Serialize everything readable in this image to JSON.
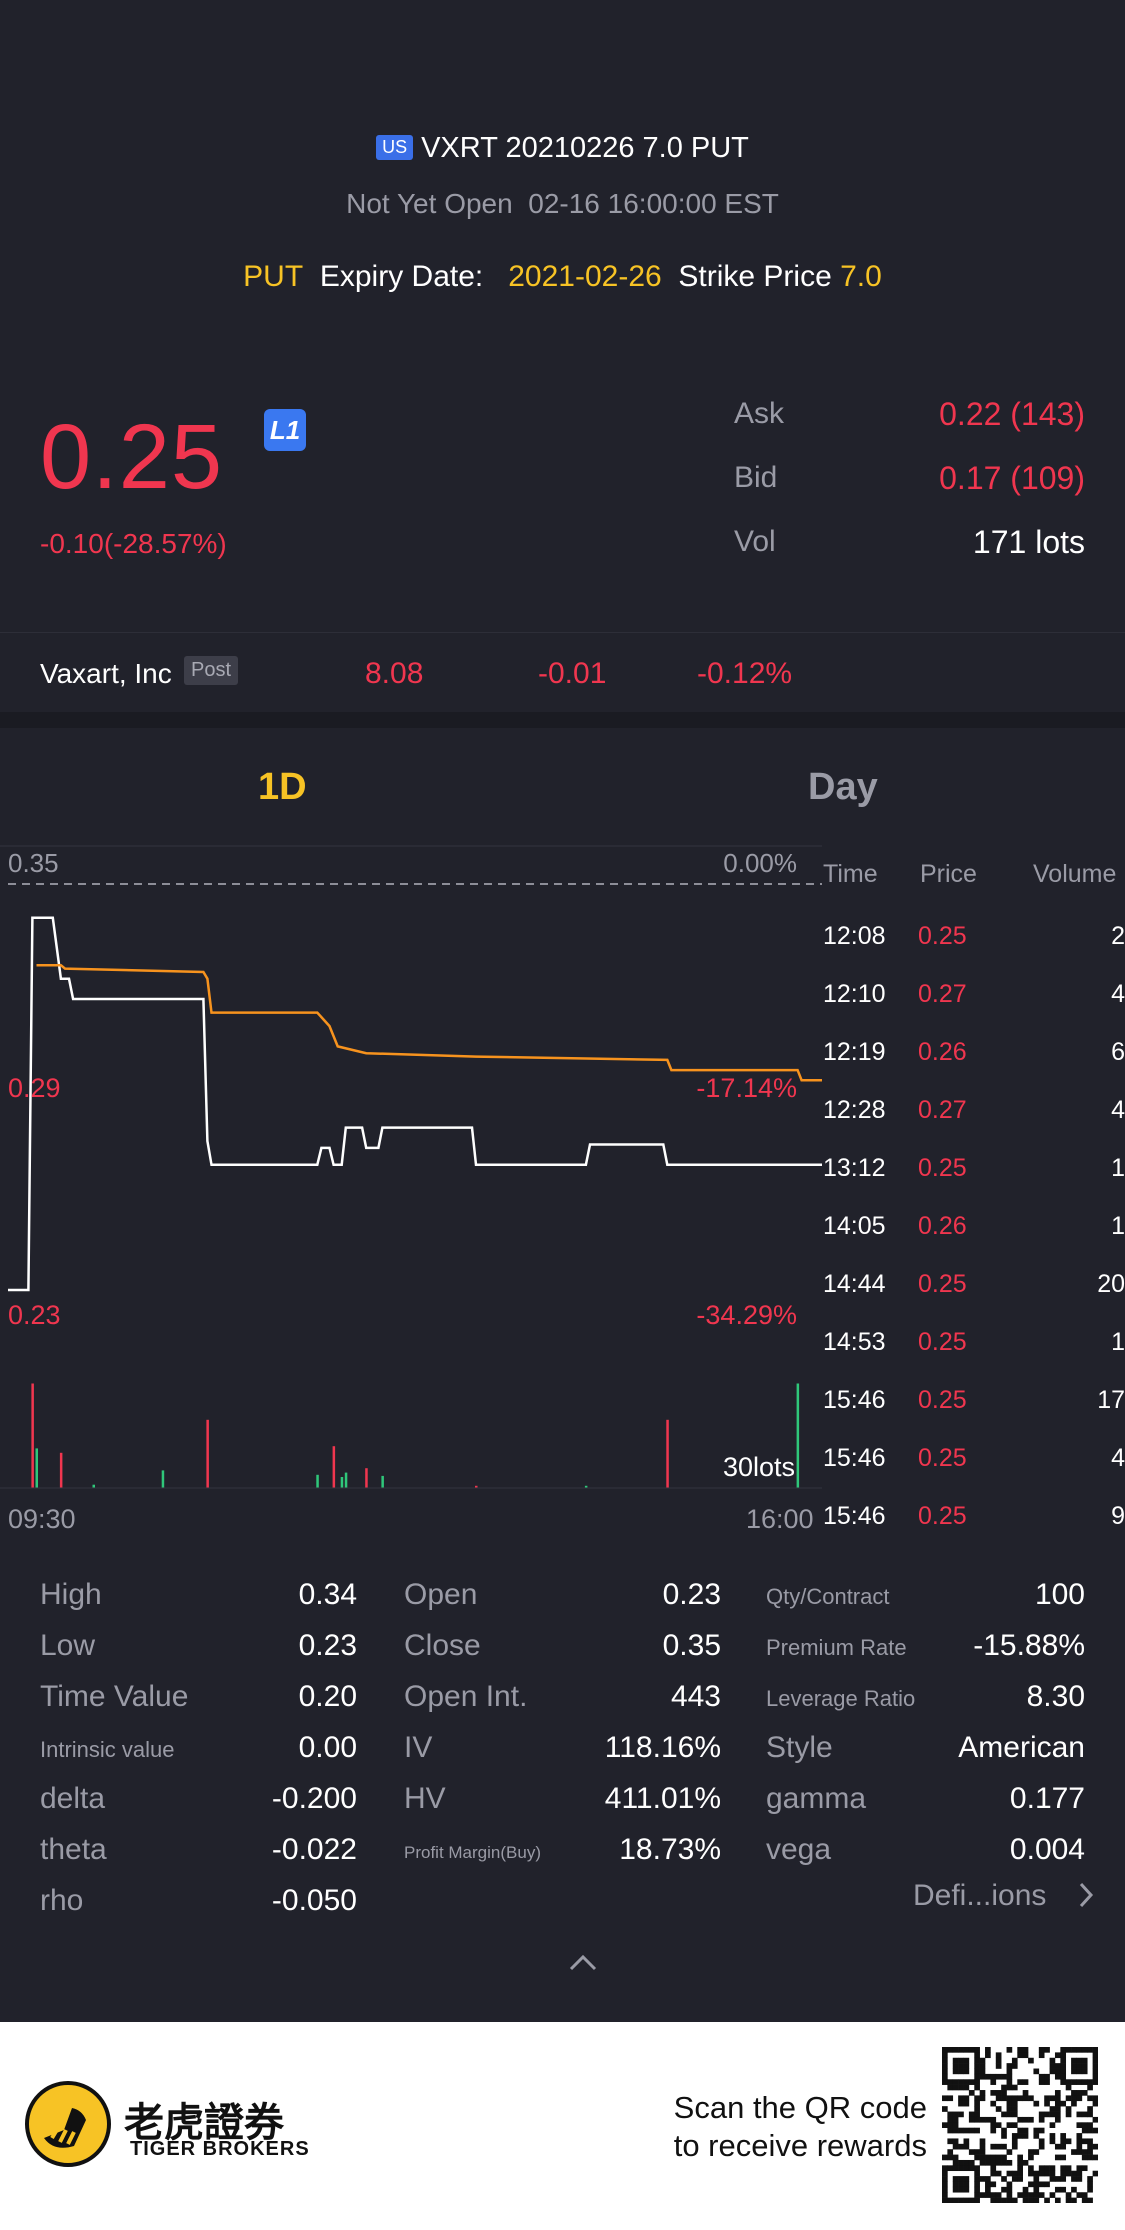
{
  "header": {
    "market_badge": "US",
    "title": "VXRT 20210226 7.0 PUT",
    "status": "Not Yet Open",
    "status_time": "02-16 16:00:00 EST",
    "type": "PUT",
    "expiry_label": "Expiry Date:",
    "expiry_value": "2021-02-26",
    "strike_label": "Strike Price",
    "strike_value": "7.0"
  },
  "quote": {
    "price": "0.25",
    "level_badge": "L1",
    "change": "-0.10(-28.57%)",
    "ask_label": "Ask",
    "ask_value": "0.22 (143)",
    "bid_label": "Bid",
    "bid_value": "0.17 (109)",
    "vol_label": "Vol",
    "vol_value": "171 lots"
  },
  "underlying": {
    "name": "Vaxart, Inc",
    "session_badge": "Post",
    "price": "8.08",
    "change": "-0.01",
    "change_pct": "-0.12%"
  },
  "chart_tabs": [
    "1D",
    "Day"
  ],
  "chart_data": {
    "type": "line",
    "y_top_label": "0.35",
    "y_top_pct": "0.00%",
    "y_mid_label": "0.29",
    "y_mid_pct": "-17.14%",
    "y_bottom_label": "0.23",
    "y_bottom_pct": "-34.29%",
    "volume_max_label": "30lots",
    "x_start": "09:30",
    "x_end": "16:00",
    "ylim": [
      0.23,
      0.35
    ],
    "series": [
      {
        "color": "#ffffff",
        "points": [
          [
            0,
            0.23
          ],
          [
            0.025,
            0.23
          ],
          [
            0.03,
            0.34
          ],
          [
            0.055,
            0.34
          ],
          [
            0.065,
            0.322
          ],
          [
            0.075,
            0.322
          ],
          [
            0.08,
            0.316
          ],
          [
            0.24,
            0.316
          ],
          [
            0.245,
            0.274
          ],
          [
            0.25,
            0.267
          ],
          [
            0.38,
            0.267
          ],
          [
            0.385,
            0.272
          ],
          [
            0.395,
            0.272
          ],
          [
            0.4,
            0.267
          ],
          [
            0.41,
            0.267
          ],
          [
            0.415,
            0.278
          ],
          [
            0.435,
            0.278
          ],
          [
            0.44,
            0.272
          ],
          [
            0.455,
            0.272
          ],
          [
            0.46,
            0.278
          ],
          [
            0.57,
            0.278
          ],
          [
            0.575,
            0.267
          ],
          [
            0.71,
            0.267
          ],
          [
            0.715,
            0.273
          ],
          [
            0.805,
            0.273
          ],
          [
            0.81,
            0.267
          ],
          [
            1.0,
            0.267
          ]
        ]
      },
      {
        "color": "#f7931e",
        "points": [
          [
            0.035,
            0.326
          ],
          [
            0.065,
            0.326
          ],
          [
            0.07,
            0.325
          ],
          [
            0.24,
            0.324
          ],
          [
            0.245,
            0.322
          ],
          [
            0.25,
            0.312
          ],
          [
            0.38,
            0.312
          ],
          [
            0.395,
            0.308
          ],
          [
            0.405,
            0.302
          ],
          [
            0.44,
            0.3
          ],
          [
            0.575,
            0.299
          ],
          [
            0.81,
            0.298
          ],
          [
            0.815,
            0.295
          ],
          [
            0.97,
            0.295
          ],
          [
            0.975,
            0.292
          ],
          [
            1.0,
            0.292
          ]
        ]
      }
    ],
    "volume": {
      "red": [
        [
          0.03,
          0.95
        ],
        [
          0.065,
          0.32
        ],
        [
          0.245,
          0.62
        ],
        [
          0.4,
          0.38
        ],
        [
          0.44,
          0.18
        ],
        [
          0.575,
          0.02
        ],
        [
          0.81,
          0.62
        ]
      ],
      "green": [
        [
          0.035,
          0.36
        ],
        [
          0.105,
          0.03
        ],
        [
          0.19,
          0.16
        ],
        [
          0.38,
          0.12
        ],
        [
          0.41,
          0.1
        ],
        [
          0.415,
          0.14
        ],
        [
          0.46,
          0.11
        ],
        [
          0.71,
          0.02
        ],
        [
          0.97,
          0.95
        ]
      ]
    }
  },
  "trades": {
    "headers": [
      "Time",
      "Price",
      "Volume"
    ],
    "rows": [
      {
        "time": "12:08",
        "price": "0.25",
        "volume": "2"
      },
      {
        "time": "12:10",
        "price": "0.27",
        "volume": "4"
      },
      {
        "time": "12:19",
        "price": "0.26",
        "volume": "6"
      },
      {
        "time": "12:28",
        "price": "0.27",
        "volume": "4"
      },
      {
        "time": "13:12",
        "price": "0.25",
        "volume": "1"
      },
      {
        "time": "14:05",
        "price": "0.26",
        "volume": "1"
      },
      {
        "time": "14:44",
        "price": "0.25",
        "volume": "20"
      },
      {
        "time": "14:53",
        "price": "0.25",
        "volume": "1"
      },
      {
        "time": "15:46",
        "price": "0.25",
        "volume": "17"
      },
      {
        "time": "15:46",
        "price": "0.25",
        "volume": "4"
      },
      {
        "time": "15:46",
        "price": "0.25",
        "volume": "9"
      }
    ]
  },
  "stats": {
    "col1": [
      {
        "label": "High",
        "value": "0.34"
      },
      {
        "label": "Low",
        "value": "0.23"
      },
      {
        "label": "Time Value",
        "value": "0.20"
      },
      {
        "label": "Intrinsic value",
        "value": "0.00"
      },
      {
        "label": "delta",
        "value": "-0.200"
      },
      {
        "label": "theta",
        "value": "-0.022"
      },
      {
        "label": "rho",
        "value": "-0.050"
      }
    ],
    "col2": [
      {
        "label": "Open",
        "value": "0.23"
      },
      {
        "label": "Close",
        "value": "0.35"
      },
      {
        "label": "Open Int.",
        "value": "443"
      },
      {
        "label": "IV",
        "value": "118.16%"
      },
      {
        "label": "HV",
        "value": "411.01%"
      },
      {
        "label": "Profit Margin(Buy)",
        "value": "18.73%"
      }
    ],
    "col3": [
      {
        "label": "Qty/Contract",
        "value": "100"
      },
      {
        "label": "Premium Rate",
        "value": "-15.88%"
      },
      {
        "label": "Leverage Ratio",
        "value": "8.30"
      },
      {
        "label": "Style",
        "value": "American"
      },
      {
        "label": "gamma",
        "value": "0.177"
      },
      {
        "label": "vega",
        "value": "0.004"
      }
    ],
    "definitions_link": "Defi...ions"
  },
  "footer": {
    "brand_cn": "老虎證券",
    "brand_en": "TIGER BROKERS",
    "promo_line1": "Scan the QR code",
    "promo_line2": "to receive rewards"
  }
}
